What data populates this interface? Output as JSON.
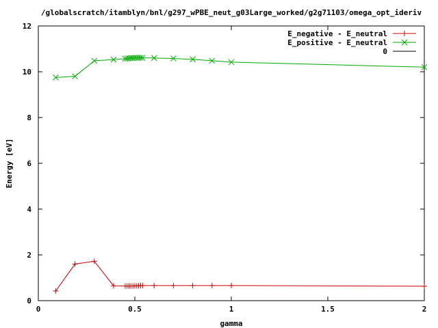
{
  "chart_data": {
    "type": "line",
    "title": "/globalscratch/itamblyn/bnl/g297_wPBE_neut_g03Large_worked/g2g71103/omega_opt_ideriv",
    "xlabel": "gamma",
    "ylabel": "Energy [eV]",
    "xlim": [
      0,
      2
    ],
    "ylim": [
      0,
      12
    ],
    "x_ticks": [
      {
        "value": 0,
        "label": "0"
      },
      {
        "value": 0.5,
        "label": "0.5"
      },
      {
        "value": 1,
        "label": "1"
      },
      {
        "value": 1.5,
        "label": "1.5"
      },
      {
        "value": 2,
        "label": "2"
      }
    ],
    "y_ticks": [
      {
        "value": 0,
        "label": "0"
      },
      {
        "value": 2,
        "label": "2"
      },
      {
        "value": 4,
        "label": "4"
      },
      {
        "value": 6,
        "label": "6"
      },
      {
        "value": 8,
        "label": "8"
      },
      {
        "value": 10,
        "label": "10"
      },
      {
        "value": 12,
        "label": "12"
      }
    ],
    "grid": false,
    "legend_position": "top-right",
    "series": [
      {
        "name": "E_negative - E_neutral",
        "color": "#cc0000",
        "marker": "plus",
        "x": [
          0.09,
          0.19,
          0.29,
          0.39,
          0.45,
          0.46,
          0.47,
          0.48,
          0.49,
          0.5,
          0.51,
          0.52,
          0.53,
          0.54,
          0.6,
          0.7,
          0.8,
          0.9,
          1.0,
          2.0
        ],
        "y": [
          0.42,
          1.6,
          1.72,
          0.65,
          0.64,
          0.64,
          0.64,
          0.64,
          0.64,
          0.65,
          0.65,
          0.65,
          0.66,
          0.66,
          0.66,
          0.66,
          0.66,
          0.66,
          0.66,
          0.63
        ]
      },
      {
        "name": "E_positive - E_neutral",
        "color": "#00aa00",
        "marker": "cross",
        "x": [
          0.09,
          0.19,
          0.29,
          0.39,
          0.45,
          0.46,
          0.47,
          0.48,
          0.49,
          0.5,
          0.51,
          0.52,
          0.53,
          0.54,
          0.6,
          0.7,
          0.8,
          0.9,
          1.0,
          2.0
        ],
        "y": [
          9.75,
          9.8,
          10.48,
          10.53,
          10.57,
          10.58,
          10.59,
          10.6,
          10.6,
          10.61,
          10.61,
          10.61,
          10.61,
          10.61,
          10.6,
          10.58,
          10.54,
          10.48,
          10.42,
          10.2
        ]
      },
      {
        "name": "0",
        "color": "#000000",
        "marker": "none",
        "x": [
          0,
          2
        ],
        "y": [
          0,
          0
        ]
      }
    ]
  }
}
